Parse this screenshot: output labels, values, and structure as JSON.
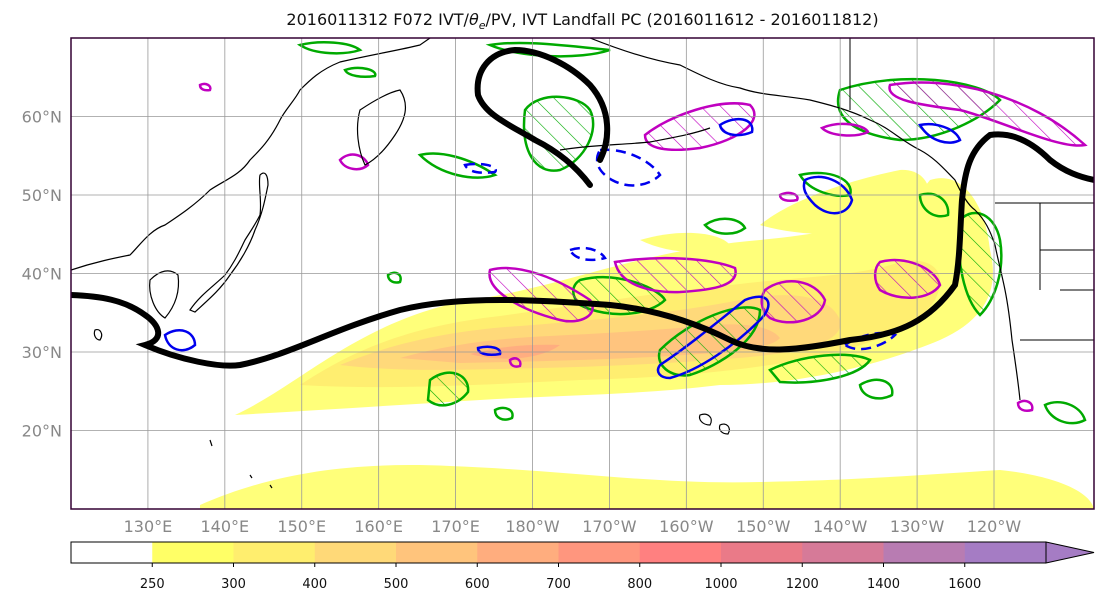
{
  "title": {
    "prefix": "2016011312 F072 IVT/",
    "theta": "θ",
    "theta_sub": "e",
    "suffix": "/PV, IVT Landfall PC (2016011612 - 2016011812)"
  },
  "lat_labels": [
    "60°N",
    "50°N",
    "40°N",
    "30°N",
    "20°N"
  ],
  "lat_values": [
    60,
    50,
    40,
    30,
    20
  ],
  "lon_labels": [
    "130°E",
    "140°E",
    "150°E",
    "160°E",
    "170°E",
    "180°W",
    "170°W",
    "160°W",
    "150°W",
    "140°W",
    "130°W",
    "120°W"
  ],
  "lon_values": [
    130,
    140,
    150,
    160,
    170,
    180,
    190,
    200,
    210,
    220,
    230,
    240
  ],
  "map_extent": {
    "lon_min": 120,
    "lon_max": 253,
    "lat_min": 10,
    "lat_max": 70
  },
  "colorbar": {
    "ticks": [
      "250",
      "300",
      "400",
      "500",
      "600",
      "700",
      "800",
      "1000",
      "1200",
      "1400",
      "1600"
    ],
    "colors": [
      "#ffff66",
      "#ffee6e",
      "#ffd978",
      "#ffc47c",
      "#ffad7e",
      "#ff967e",
      "#ff8080",
      "#ea7a88",
      "#d67a98",
      "#b87cb2",
      "#a57cc4"
    ],
    "extend": "max"
  },
  "colors": {
    "landfall_pc_line": "#000000",
    "pv_contour": "#00aa00",
    "theta_e_contour": "#0000ff",
    "ivt_anomaly_contour": "#c000c0",
    "frame": "#330033"
  }
}
